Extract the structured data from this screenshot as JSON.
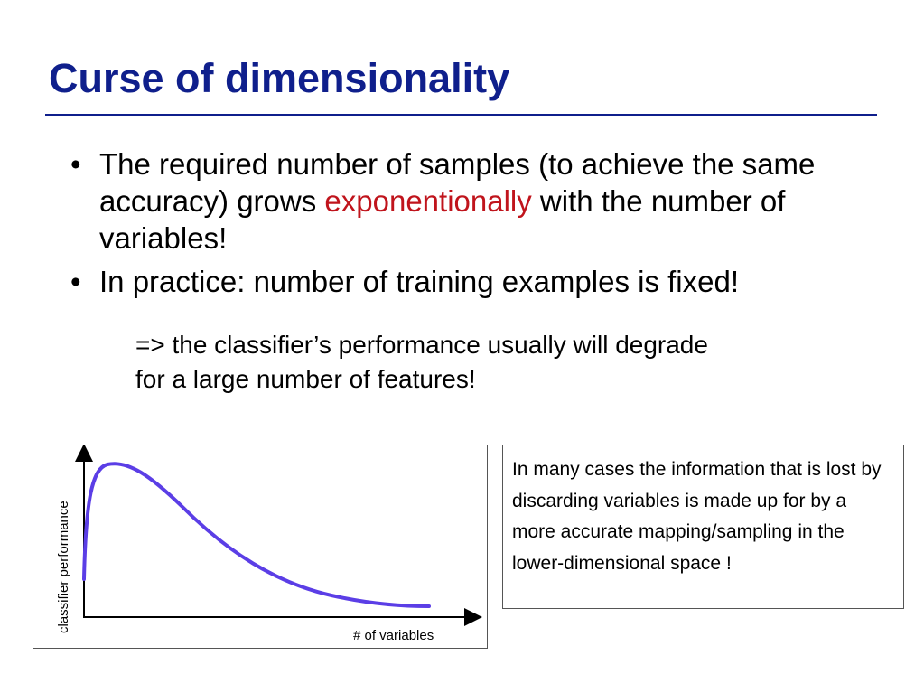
{
  "slide": {
    "title": "Curse of dimensionality",
    "accent_color": "#0f1f8c",
    "highlight_color": "#c0141c"
  },
  "bullets": [
    {
      "marker": "•",
      "before": "The required number of samples (to achieve the same accuracy) grows ",
      "emphasis": "exponentionally",
      "after": " with the number of variables!"
    },
    {
      "marker": "•",
      "text": "In practice: number of training examples is fixed!"
    }
  ],
  "consequence": {
    "line1": "=> the classifier’s performance usually will degrade",
    "line2": "for a large number of features!"
  },
  "figure": {
    "y_axis_label": "classifier performance",
    "x_axis_label": "# of variables",
    "curve_color": "#5b3ee6"
  },
  "note": {
    "text": "In many cases the information that is lost by discarding variables is made up for by a more accurate mapping/sampling in the lower-dimensional space !"
  }
}
